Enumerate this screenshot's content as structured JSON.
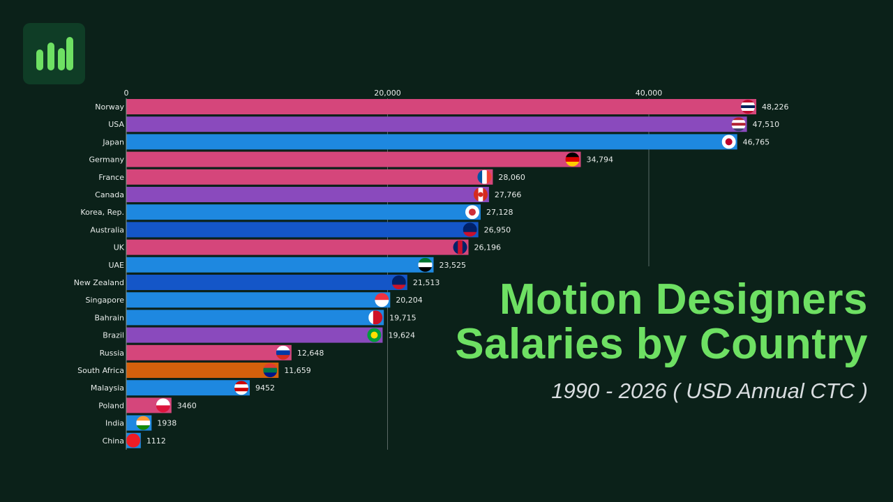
{
  "header": {
    "logo_icon": "bar-chart-icon",
    "title_line1": "Motion Designers",
    "title_line2": "Salaries by Country",
    "subtitle": "1990 - 2026 ( USD Annual CTC )"
  },
  "chart_data": {
    "type": "bar",
    "orientation": "horizontal",
    "xlim": [
      0,
      40000
    ],
    "x_ticks": [
      0,
      20000,
      40000
    ],
    "x_tick_labels": [
      "0",
      "20,000",
      "40,000"
    ],
    "grid": true,
    "categories": [
      "Norway",
      "USA",
      "Japan",
      "Germany",
      "France",
      "Canada",
      "Korea, Rep.",
      "Australia",
      "UK",
      "UAE",
      "New Zealand",
      "Singapore",
      "Bahrain",
      "Brazil",
      "Russia",
      "South Africa",
      "Malaysia",
      "Poland",
      "India",
      "China"
    ],
    "values": [
      48226,
      47510,
      46765,
      34794,
      28060,
      27766,
      27128,
      26950,
      26196,
      23525,
      21513,
      20204,
      19715,
      19624,
      12648,
      11659,
      9452,
      3460,
      1938,
      1112
    ],
    "value_labels": [
      "48,226",
      "47,510",
      "46,765",
      "34,794",
      "28,060",
      "27,766",
      "27,128",
      "26,950",
      "26,196",
      "23,525",
      "21,513",
      "20,204",
      "19,715",
      "19,624",
      "12,648",
      "11,659",
      "9452",
      "3460",
      "1938",
      "1112"
    ],
    "bar_colors": [
      "#d5467b",
      "#8a4abd",
      "#1e88e0",
      "#d5467b",
      "#d5467b",
      "#8a4abd",
      "#1e88e0",
      "#1456c8",
      "#d5467b",
      "#1e88e0",
      "#1456c8",
      "#1e88e0",
      "#1e88e0",
      "#8a4abd",
      "#d5467b",
      "#d4600c",
      "#1e88e0",
      "#d5467b",
      "#1e88e0",
      "#1e88e0"
    ],
    "flags": [
      {
        "dir": "h",
        "colors": [
          "#ba0c2f",
          "#ffffff",
          "#00205b",
          "#ffffff",
          "#ba0c2f"
        ]
      },
      {
        "dir": "h",
        "colors": [
          "#b22234",
          "#ffffff",
          "#b22234",
          "#ffffff",
          "#3c3b6e"
        ]
      },
      {
        "dir": "dot",
        "colors": [
          "#ffffff",
          "#bc002d"
        ]
      },
      {
        "dir": "h",
        "colors": [
          "#000000",
          "#dd0000",
          "#ffce00"
        ]
      },
      {
        "dir": "v",
        "colors": [
          "#0055a4",
          "#ffffff",
          "#ef4135"
        ]
      },
      {
        "dir": "vdot",
        "colors": [
          "#d52b1e",
          "#ffffff",
          "#d52b1e"
        ]
      },
      {
        "dir": "dot",
        "colors": [
          "#ffffff",
          "#cd2e3a"
        ]
      },
      {
        "dir": "h",
        "colors": [
          "#012169",
          "#012169",
          "#c8102e"
        ]
      },
      {
        "dir": "v",
        "colors": [
          "#012169",
          "#c8102e",
          "#012169"
        ]
      },
      {
        "dir": "h",
        "colors": [
          "#00732f",
          "#ffffff",
          "#000000"
        ]
      },
      {
        "dir": "h",
        "colors": [
          "#012169",
          "#012169",
          "#cc142b"
        ]
      },
      {
        "dir": "h",
        "colors": [
          "#ef3340",
          "#ffffff"
        ]
      },
      {
        "dir": "v",
        "colors": [
          "#ffffff",
          "#ce1126",
          "#ce1126"
        ]
      },
      {
        "dir": "dot",
        "colors": [
          "#009c3b",
          "#ffdf00"
        ]
      },
      {
        "dir": "h",
        "colors": [
          "#ffffff",
          "#0039a6",
          "#d52b1e"
        ]
      },
      {
        "dir": "h",
        "colors": [
          "#e03c31",
          "#007749",
          "#001489"
        ]
      },
      {
        "dir": "h",
        "colors": [
          "#cc0001",
          "#ffffff",
          "#cc0001",
          "#ffffff"
        ]
      },
      {
        "dir": "h",
        "colors": [
          "#ffffff",
          "#dc143c"
        ]
      },
      {
        "dir": "h",
        "colors": [
          "#ff9933",
          "#ffffff",
          "#138808"
        ]
      },
      {
        "dir": "h",
        "colors": [
          "#ee1c25"
        ]
      }
    ]
  }
}
